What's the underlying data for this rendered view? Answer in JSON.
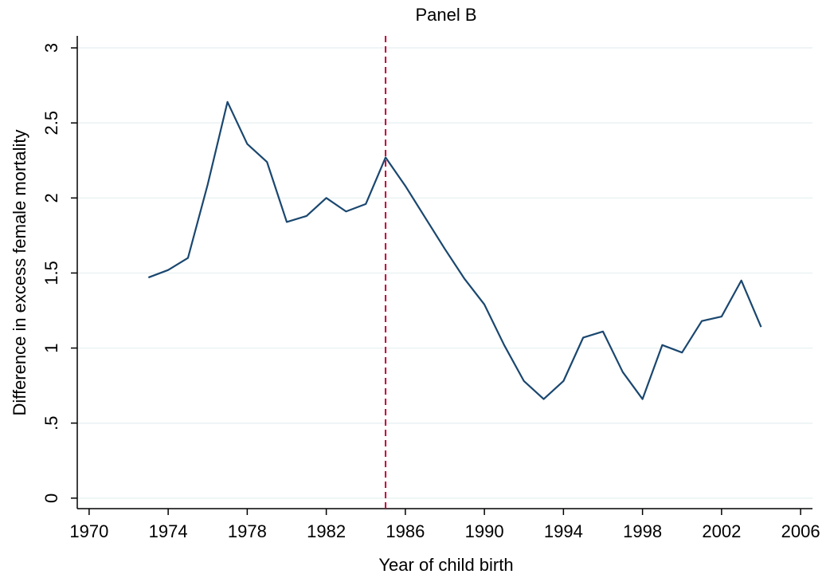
{
  "chart_data": {
    "type": "line",
    "title": "Panel B",
    "x_label": "Year of child birth",
    "y_label": "Difference in excess female mortality",
    "x": [
      1973,
      1974,
      1975,
      1976,
      1977,
      1978,
      1979,
      1980,
      1981,
      1982,
      1983,
      1984,
      1985,
      1986,
      1987,
      1988,
      1989,
      1990,
      1991,
      1992,
      1993,
      1994,
      1995,
      1996,
      1997,
      1998,
      1999,
      2000,
      2001,
      2002,
      2003,
      2004
    ],
    "series": [
      {
        "color": "#1a476f",
        "values": [
          1.47,
          1.52,
          1.6,
          2.09,
          2.64,
          2.36,
          2.24,
          1.84,
          1.88,
          2.0,
          1.91,
          1.96,
          2.27,
          2.08,
          1.87,
          1.66,
          1.46,
          1.29,
          1.02,
          0.78,
          0.66,
          0.78,
          1.07,
          1.11,
          0.84,
          0.66,
          1.02,
          0.97,
          1.18,
          1.21,
          1.45,
          1.14
        ]
      }
    ],
    "vline": 1985,
    "vline_color": "#c10534",
    "xlim": [
      1969.4,
      2006.6
    ],
    "xticks": [
      1970,
      1974,
      1978,
      1982,
      1986,
      1990,
      1994,
      1998,
      2002,
      2006
    ],
    "ylim": [
      -0.07,
      3.08
    ],
    "yticks": [
      0,
      {
        "value": 0.5,
        "label": ".5"
      },
      1,
      1.5,
      2,
      2.5,
      3
    ],
    "grid": true,
    "grid_color": "#eaf2f3"
  }
}
